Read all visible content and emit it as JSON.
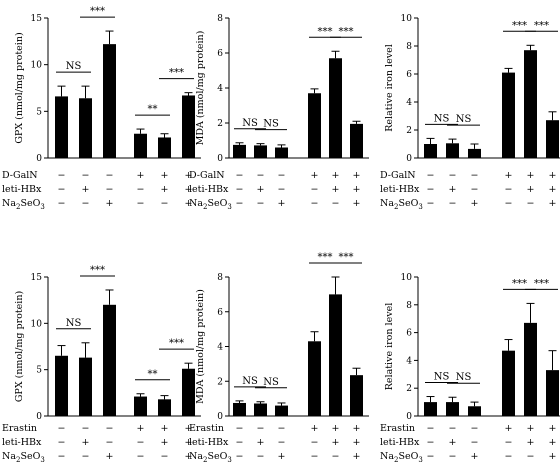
{
  "chart_data": [
    {
      "type": "bar",
      "ylabel": "GPX (nmol/mg protein)",
      "ylim": [
        0,
        15
      ],
      "yticks": [
        0,
        5,
        10,
        15
      ],
      "values": [
        6.6,
        6.4,
        12.2,
        2.6,
        2.2,
        6.7
      ],
      "errors": [
        1.1,
        1.3,
        1.4,
        0.5,
        0.4,
        0.3
      ],
      "rows": [
        {
          "label": "D-GalN",
          "signs": [
            "−",
            "−",
            "−",
            "+",
            "+",
            "+"
          ]
        },
        {
          "label": "leti-HBx",
          "signs": [
            "−",
            "+",
            "−",
            "−",
            "+",
            "+"
          ]
        },
        {
          "label": "Na2SeO3",
          "signs": [
            "−",
            "−",
            "+",
            "−",
            "−",
            "+"
          ]
        }
      ],
      "annotations": [
        {
          "from": 0,
          "to": 1,
          "text": "NS"
        },
        {
          "from": 1,
          "to": 2,
          "text": "***"
        },
        {
          "from": 3,
          "to": 4,
          "text": "**"
        },
        {
          "from": 4,
          "to": 5,
          "text": "***"
        }
      ]
    },
    {
      "type": "bar",
      "ylabel": "MDA (nmol/mg protein)",
      "ylim": [
        0,
        8
      ],
      "yticks": [
        0,
        2,
        4,
        6,
        8
      ],
      "values": [
        0.75,
        0.72,
        0.6,
        3.7,
        5.7,
        1.95
      ],
      "errors": [
        0.12,
        0.1,
        0.15,
        0.25,
        0.4,
        0.15
      ],
      "rows": [
        {
          "label": "D-GalN",
          "signs": [
            "−",
            "−",
            "−",
            "+",
            "+",
            "+"
          ]
        },
        {
          "label": "leti-HBx",
          "signs": [
            "−",
            "+",
            "−",
            "−",
            "+",
            "+"
          ]
        },
        {
          "label": "Na2SeO3",
          "signs": [
            "−",
            "−",
            "+",
            "−",
            "−",
            "+"
          ]
        }
      ],
      "annotations": [
        {
          "from": 0,
          "to": 1,
          "text": "NS"
        },
        {
          "from": 1,
          "to": 2,
          "text": "NS"
        },
        {
          "from": 3,
          "to": 4,
          "text": "***"
        },
        {
          "from": 4,
          "to": 5,
          "text": "***"
        }
      ]
    },
    {
      "type": "bar",
      "ylabel": "Relative iron level",
      "ylim": [
        0,
        10
      ],
      "yticks": [
        0,
        2,
        4,
        6,
        8,
        10
      ],
      "values": [
        1.0,
        1.05,
        0.65,
        6.1,
        7.7,
        2.7
      ],
      "errors": [
        0.4,
        0.3,
        0.35,
        0.3,
        0.35,
        0.6
      ],
      "rows": [
        {
          "label": "D-GalN",
          "signs": [
            "−",
            "−",
            "−",
            "+",
            "+",
            "+"
          ]
        },
        {
          "label": "leti-HBx",
          "signs": [
            "−",
            "+",
            "−",
            "−",
            "+",
            "+"
          ]
        },
        {
          "label": "Na2SeO3",
          "signs": [
            "−",
            "−",
            "+",
            "−",
            "−",
            "+"
          ]
        }
      ],
      "annotations": [
        {
          "from": 0,
          "to": 1,
          "text": "NS"
        },
        {
          "from": 1,
          "to": 2,
          "text": "NS"
        },
        {
          "from": 3,
          "to": 4,
          "text": "***"
        },
        {
          "from": 4,
          "to": 5,
          "text": "***"
        }
      ]
    },
    {
      "type": "bar",
      "ylabel": "GPX (nmol/mg protein)",
      "ylim": [
        0,
        15
      ],
      "yticks": [
        0,
        5,
        10,
        15
      ],
      "values": [
        6.5,
        6.3,
        12.0,
        2.1,
        1.8,
        5.1
      ],
      "errors": [
        1.1,
        1.6,
        1.6,
        0.3,
        0.4,
        0.6
      ],
      "rows": [
        {
          "label": "Erastin",
          "signs": [
            "−",
            "−",
            "−",
            "+",
            "+",
            "+"
          ]
        },
        {
          "label": "leti-HBx",
          "signs": [
            "−",
            "+",
            "−",
            "−",
            "+",
            "+"
          ]
        },
        {
          "label": "Na2SeO3",
          "signs": [
            "−",
            "−",
            "+",
            "−",
            "−",
            "+"
          ]
        }
      ],
      "annotations": [
        {
          "from": 0,
          "to": 1,
          "text": "NS"
        },
        {
          "from": 1,
          "to": 2,
          "text": "***"
        },
        {
          "from": 3,
          "to": 4,
          "text": "**"
        },
        {
          "from": 4,
          "to": 5,
          "text": "***"
        }
      ]
    },
    {
      "type": "bar",
      "ylabel": "MDA (nmol/mg protein)",
      "ylim": [
        0,
        8
      ],
      "yticks": [
        0,
        2,
        4,
        6,
        8
      ],
      "values": [
        0.75,
        0.72,
        0.6,
        4.3,
        7.0,
        2.35
      ],
      "errors": [
        0.12,
        0.1,
        0.15,
        0.55,
        1.0,
        0.4
      ],
      "rows": [
        {
          "label": "Erastin",
          "signs": [
            "−",
            "−",
            "−",
            "+",
            "+",
            "+"
          ]
        },
        {
          "label": "leti-HBx",
          "signs": [
            "−",
            "+",
            "−",
            "−",
            "+",
            "+"
          ]
        },
        {
          "label": "Na2SeO3",
          "signs": [
            "−",
            "−",
            "+",
            "−",
            "−",
            "+"
          ]
        }
      ],
      "annotations": [
        {
          "from": 0,
          "to": 1,
          "text": "NS"
        },
        {
          "from": 1,
          "to": 2,
          "text": "NS"
        },
        {
          "from": 3,
          "to": 4,
          "text": "***"
        },
        {
          "from": 4,
          "to": 5,
          "text": "***"
        }
      ]
    },
    {
      "type": "bar",
      "ylabel": "Relative iron level",
      "ylim": [
        0,
        10
      ],
      "yticks": [
        0,
        2,
        4,
        6,
        8,
        10
      ],
      "values": [
        1.0,
        1.0,
        0.7,
        4.7,
        6.7,
        3.3
      ],
      "errors": [
        0.4,
        0.35,
        0.3,
        0.8,
        1.4,
        1.4
      ],
      "rows": [
        {
          "label": "Erastin",
          "signs": [
            "−",
            "−",
            "−",
            "+",
            "+",
            "+"
          ]
        },
        {
          "label": "leti-HBx",
          "signs": [
            "−",
            "+",
            "−",
            "−",
            "+",
            "+"
          ]
        },
        {
          "label": "Na2SeO3",
          "signs": [
            "−",
            "−",
            "+",
            "−",
            "−",
            "+"
          ]
        }
      ],
      "annotations": [
        {
          "from": 0,
          "to": 1,
          "text": "NS"
        },
        {
          "from": 1,
          "to": 2,
          "text": "NS"
        },
        {
          "from": 3,
          "to": 4,
          "text": "***"
        },
        {
          "from": 4,
          "to": 5,
          "text": "***"
        }
      ]
    }
  ]
}
